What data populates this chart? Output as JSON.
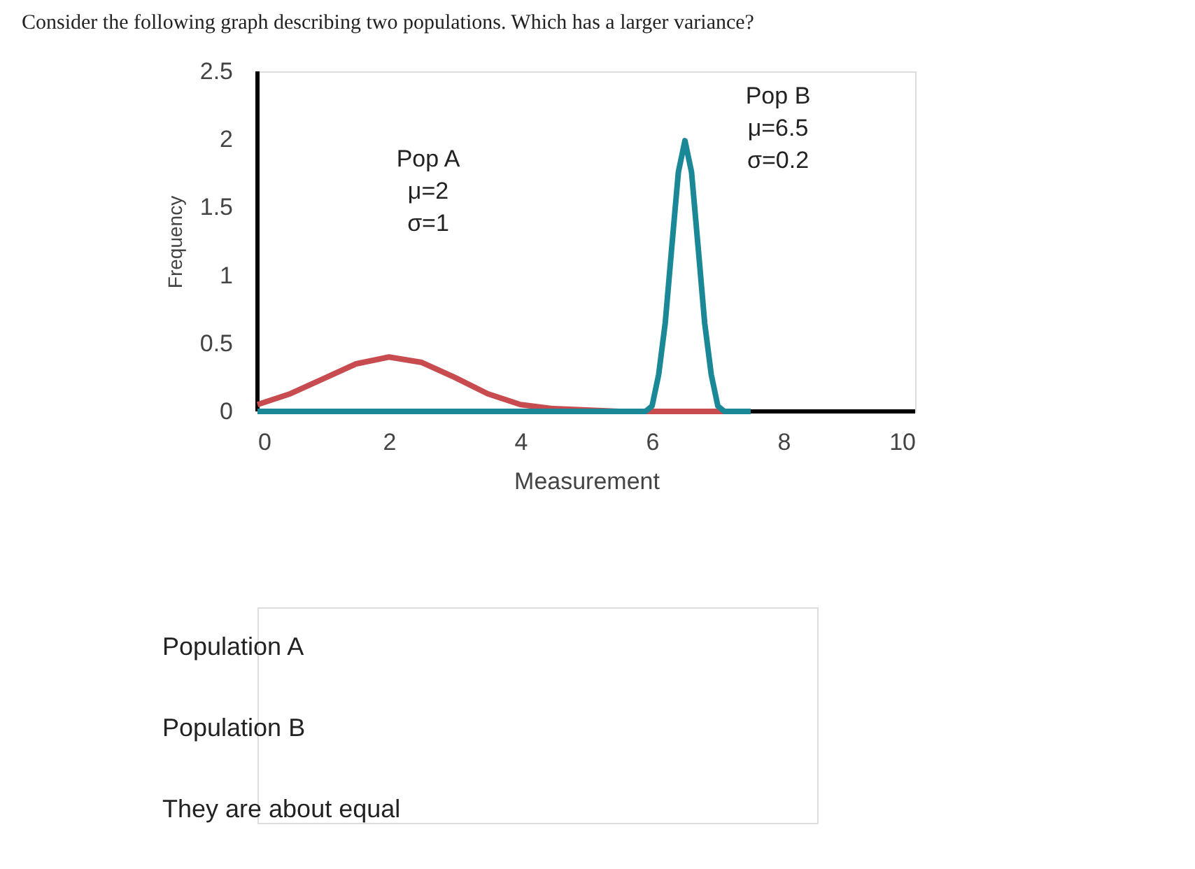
{
  "chart_data": {
    "type": "line",
    "title": "Consider the following graph describing two populations.  Which has a larger variance?",
    "xlabel": "Measurement",
    "ylabel": "Frequency",
    "xlim": [
      0,
      10
    ],
    "xticks": [
      0,
      2,
      4,
      6,
      8,
      10
    ],
    "ylim": [
      0,
      2.5
    ],
    "yticks": [
      0,
      0.5,
      1,
      1.5,
      2,
      2.5
    ],
    "grid": false,
    "legend": false,
    "marker": "none",
    "line_style": "solid",
    "series": [
      {
        "color": "#c84c4f",
        "x": [
          0,
          0.5,
          1,
          1.5,
          2,
          2.5,
          3,
          3.5,
          4,
          4.5,
          5,
          5.5,
          6,
          6.5,
          7,
          7.5
        ],
        "values": [
          0.05,
          0.13,
          0.24,
          0.35,
          0.4,
          0.36,
          0.25,
          0.13,
          0.05,
          0.02,
          0.01,
          0,
          0,
          0,
          0,
          0
        ]
      },
      {
        "color": "#1a8896",
        "x": [
          0,
          5.9,
          6.0,
          6.1,
          6.2,
          6.3,
          6.4,
          6.5,
          6.6,
          6.7,
          6.8,
          6.9,
          7.0,
          7.1,
          7.5
        ],
        "values": [
          0,
          0,
          0.04,
          0.27,
          0.65,
          1.21,
          1.76,
          1.99,
          1.76,
          1.21,
          0.65,
          0.27,
          0.04,
          0,
          0
        ]
      }
    ],
    "annotations": [
      "Pop A\nμ=2\nσ=1",
      "Pop B\nμ=6.5\nσ=0.2",
      "Population A",
      "Population B",
      "They are about equal"
    ]
  }
}
